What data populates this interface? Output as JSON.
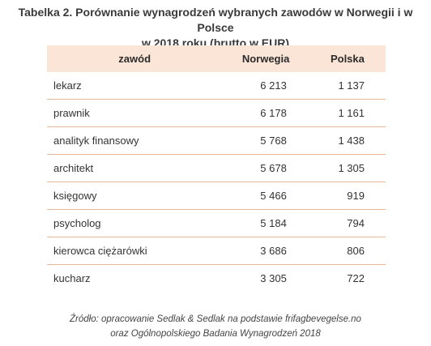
{
  "title": {
    "line1": "Tabelka 2. Porównanie wynagrodzeń wybranych zawodów w Norwegii i w Polsce",
    "line2": "w 2018 roku (brutto w EUR)"
  },
  "table": {
    "headers": [
      "zawód",
      "Norwegia",
      "Polska"
    ],
    "rows": [
      [
        "lekarz",
        "6 213",
        "1 137"
      ],
      [
        "prawnik",
        "6 178",
        "1 161"
      ],
      [
        "analityk finansowy",
        "5 768",
        "1 438"
      ],
      [
        "architekt",
        "5 678",
        "1 305"
      ],
      [
        "księgowy",
        "5 466",
        "919"
      ],
      [
        "psycholog",
        "5 184",
        "794"
      ],
      [
        "kierowca ciężarówki",
        "3 686",
        "806"
      ],
      [
        "kucharz",
        "3 305",
        "722"
      ]
    ]
  },
  "source": {
    "line1": "Źródło: opracowanie Sedlak & Sedlak na podstawie frifagbevegelse.no",
    "line2": "oraz Ogólnopolskiego Badania Wynagrodzeń 2018"
  },
  "colors": {
    "header_bg": "#fbe5d6",
    "row_border": "#e8b898"
  }
}
